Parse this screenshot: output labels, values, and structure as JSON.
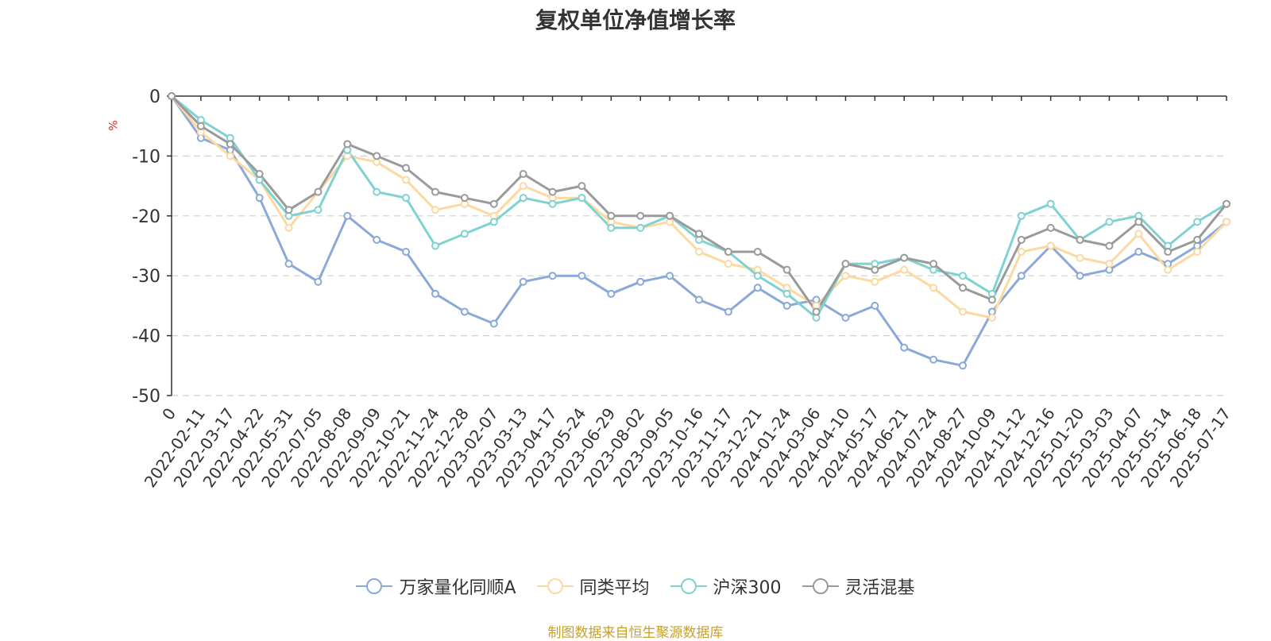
{
  "chart_data": {
    "type": "line",
    "title": "复权单位净值增长率",
    "ylabel": "%",
    "ylim": [
      -50,
      0
    ],
    "yticks": [
      0,
      -10,
      -20,
      -30,
      -40,
      -50
    ],
    "grid": true,
    "legend_position": "bottom",
    "x_tick_labels": [
      "0",
      "2022-02-11",
      "2022-03-17",
      "2022-04-22",
      "2022-05-31",
      "2022-07-05",
      "2022-08-08",
      "2022-09-09",
      "2022-10-21",
      "2022-11-24",
      "2022-12-28",
      "2023-02-07",
      "2023-03-13",
      "2023-04-17",
      "2023-05-24",
      "2023-06-29",
      "2023-08-02",
      "2023-09-05",
      "2023-10-16",
      "2023-11-17",
      "2023-12-21",
      "2024-01-24",
      "2024-03-06",
      "2024-04-10",
      "2024-05-17",
      "2024-06-21",
      "2024-07-24",
      "2024-08-27",
      "2024-10-09",
      "2024-11-12",
      "2024-12-16",
      "2025-01-20",
      "2025-03-03",
      "2025-04-07",
      "2025-05-14",
      "2025-06-18",
      "2025-07-17"
    ],
    "x": [
      "0",
      "2022-02-11",
      "2022-03-17",
      "2022-04-22",
      "2022-05-31",
      "2022-07-05",
      "2022-08-08",
      "2022-09-09",
      "2022-10-21",
      "2022-11-24",
      "2022-12-28",
      "2023-02-07",
      "2023-03-13",
      "2023-04-17",
      "2023-05-24",
      "2023-06-29",
      "2023-08-02",
      "2023-09-05",
      "2023-10-16",
      "2023-11-17",
      "2023-12-21",
      "2024-01-24",
      "2024-03-06",
      "2024-04-10",
      "2024-05-17",
      "2024-06-21",
      "2024-07-24",
      "2024-08-27",
      "2024-10-09",
      "2024-11-12",
      "2024-12-16",
      "2025-01-20",
      "2025-03-03",
      "2025-04-07",
      "2025-05-14",
      "2025-06-18",
      "2025-07-17"
    ],
    "series": [
      {
        "name": "万家量化同顺A",
        "color": "#8aa9d8",
        "values": [
          0,
          -7,
          -9,
          -17,
          -28,
          -31,
          -20,
          -24,
          -26,
          -33,
          -36,
          -38,
          -31,
          -30,
          -30,
          -33,
          -31,
          -30,
          -34,
          -36,
          -32,
          -35,
          -34,
          -37,
          -35,
          -42,
          -44,
          -45,
          -36,
          -30,
          -25,
          -30,
          -29,
          -26,
          -28,
          -25,
          -21
        ]
      },
      {
        "name": "同类平均",
        "color": "#fcd9a0",
        "values": [
          0,
          -6,
          -10,
          -14,
          -22,
          -16,
          -10,
          -11,
          -14,
          -19,
          -18,
          -20,
          -15,
          -17,
          -17,
          -21,
          -22,
          -21,
          -26,
          -28,
          -29,
          -32,
          -35,
          -30,
          -31,
          -29,
          -32,
          -36,
          -37,
          -26,
          -25,
          -27,
          -28,
          -23,
          -29,
          -26,
          -21
        ]
      },
      {
        "name": "沪深300",
        "color": "#7fd2d2",
        "values": [
          0,
          -4,
          -7,
          -14,
          -20,
          -19,
          -9,
          -16,
          -17,
          -25,
          -23,
          -21,
          -17,
          -18,
          -17,
          -22,
          -22,
          -20,
          -24,
          -26,
          -30,
          -33,
          -37,
          -28,
          -28,
          -27,
          -29,
          -30,
          -33,
          -20,
          -18,
          -24,
          -21,
          -20,
          -25,
          -21,
          -18
        ]
      },
      {
        "name": "灵活混基",
        "color": "#9a9a9a",
        "values": [
          0,
          -5,
          -8,
          -13,
          -19,
          -16,
          -8,
          -10,
          -12,
          -16,
          -17,
          -18,
          -13,
          -16,
          -15,
          -20,
          -20,
          -20,
          -23,
          -26,
          -26,
          -29,
          -36,
          -28,
          -29,
          -27,
          -28,
          -32,
          -34,
          -24,
          -22,
          -24,
          -25,
          -21,
          -26,
          -24,
          -18
        ]
      }
    ]
  },
  "legend": {
    "items": [
      "万家量化同顺A",
      "同类平均",
      "沪深300",
      "灵活混基"
    ],
    "colors": [
      "#8aa9d8",
      "#fcd9a0",
      "#7fd2d2",
      "#9a9a9a"
    ]
  },
  "source_text": "制图数据来自恒生聚源数据库"
}
